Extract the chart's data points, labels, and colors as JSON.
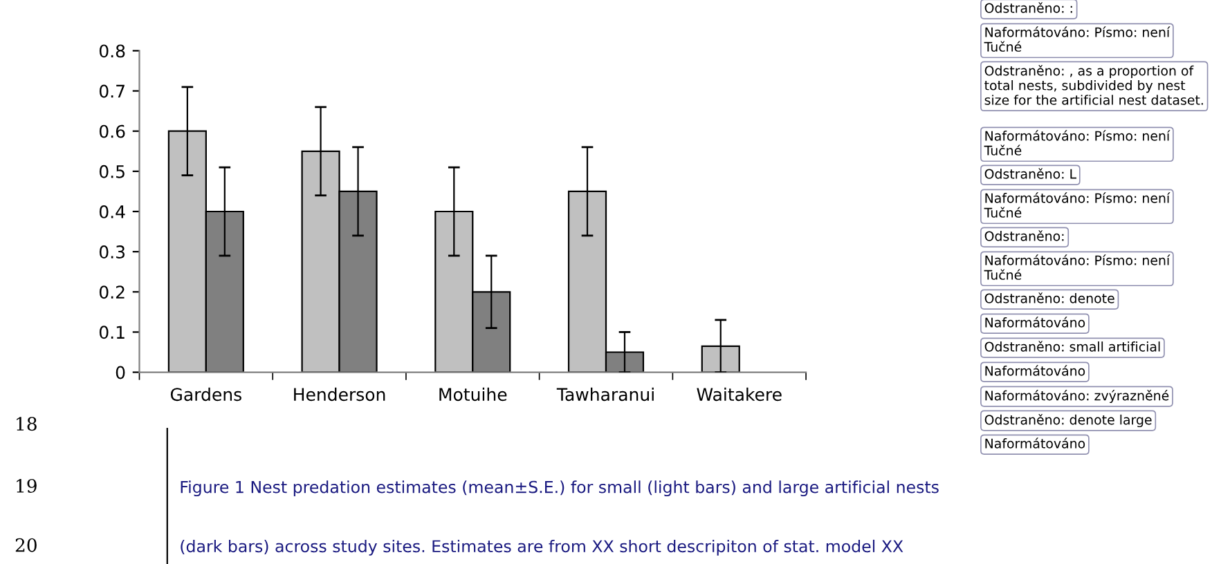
{
  "chart_data": {
    "type": "bar",
    "categories": [
      "Gardens",
      "Henderson",
      "Motuihe",
      "Tawharanui",
      "Waitakere"
    ],
    "series": [
      {
        "color": "#c0c0c0",
        "values": [
          0.6,
          0.55,
          0.4,
          0.45,
          0.065
        ],
        "errors": [
          0.11,
          0.11,
          0.11,
          0.11,
          0.065
        ]
      },
      {
        "color": "#808080",
        "values": [
          0.4,
          0.45,
          0.2,
          0.05,
          null
        ],
        "errors": [
          0.11,
          0.11,
          0.09,
          0.05,
          null
        ]
      }
    ],
    "ylim": [
      0,
      0.8
    ],
    "yticks": [
      0,
      0.1,
      0.2,
      0.3,
      0.4,
      0.5,
      0.6,
      0.7,
      0.8
    ],
    "grid": false,
    "legend": false,
    "annotations": [
      "18",
      "19",
      "20",
      "Figure 1 Nest predation estimates (mean±S.E.) for small (light bars) and large artificial nests",
      "(dark bars) across study sites. Estimates are from XX short descripiton of stat. model XX",
      "Odstraněno: :",
      "Naformátováno: Písmo: není Tučné",
      "Odstraněno: , as a proportion of total nests, subdivided by nest size for the artificial nest dataset.",
      "Naformátováno: Písmo: není Tučné",
      "Odstraněno: L",
      "Naformátováno: Písmo: není Tučné",
      "Odstraněno:",
      "Naformátováno: Písmo: není Tučné",
      "Odstraněno: denote",
      "Naformátováno",
      "Odstraněno: small artificial",
      "Naformátováno",
      "Naformátováno: zvýrazněné",
      "Odstraněno: denote large",
      "Naformátováno"
    ]
  }
}
